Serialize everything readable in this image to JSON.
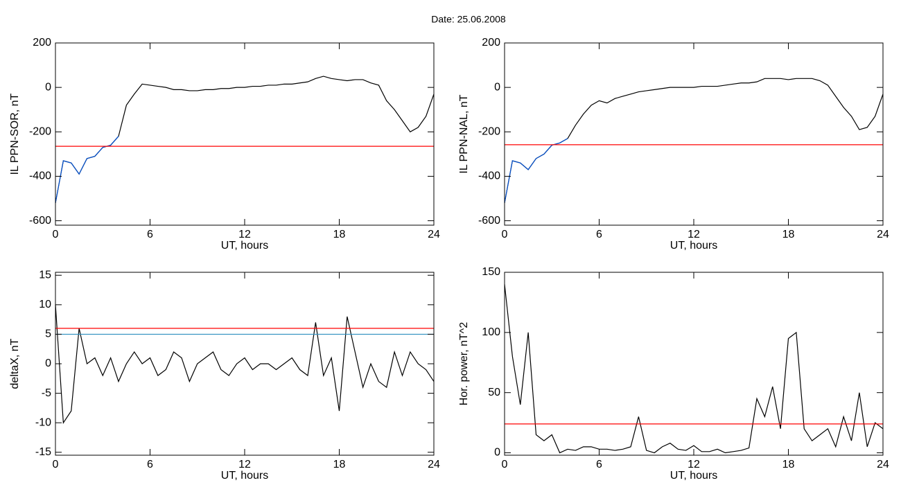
{
  "title": "Date:  25.06.2008",
  "chart_data": [
    {
      "type": "line",
      "xlabel": "UT, hours",
      "ylabel": "IL PPN-SOR, nT",
      "xlim": [
        0,
        24
      ],
      "xticks": [
        0,
        6,
        12,
        18,
        24
      ],
      "ylim": [
        -620,
        200
      ],
      "yticks": [
        -600,
        -400,
        -200,
        0,
        200
      ],
      "x": [
        0,
        0.5,
        1,
        1.5,
        2,
        2.5,
        3,
        3.5,
        4,
        4.5,
        5,
        5.5,
        6,
        6.5,
        7,
        7.5,
        8,
        8.5,
        9,
        9.5,
        10,
        10.5,
        11,
        11.5,
        12,
        12.5,
        13,
        13.5,
        14,
        14.5,
        15,
        15.5,
        16,
        16.5,
        17,
        17.5,
        18,
        18.5,
        19,
        19.5,
        20,
        20.5,
        21,
        21.5,
        22,
        22.5,
        23,
        23.5,
        24
      ],
      "series": [
        {
          "color": "#000000",
          "values": [
            -520,
            -330,
            -340,
            -390,
            -320,
            -310,
            -270,
            -260,
            -220,
            -80,
            -30,
            15,
            10,
            5,
            0,
            -10,
            -10,
            -15,
            -15,
            -10,
            -10,
            -5,
            -5,
            0,
            0,
            5,
            5,
            10,
            10,
            15,
            15,
            20,
            25,
            40,
            50,
            40,
            35,
            30,
            35,
            35,
            20,
            10,
            -60,
            -100,
            -150,
            -200,
            -180,
            -130,
            -30
          ]
        },
        {
          "color": "#0050d0",
          "values": [
            -520,
            -330,
            -340,
            -390,
            -320,
            -310,
            -270,
            -260,
            -220,
            null,
            null,
            null,
            null,
            null,
            null,
            null,
            null,
            null,
            null,
            null,
            null,
            null,
            null,
            null,
            null,
            null,
            null,
            null,
            null,
            null,
            null,
            null,
            null,
            null,
            null,
            null,
            null,
            null,
            null,
            null,
            null,
            null,
            null,
            null,
            null,
            null,
            null,
            null,
            null
          ]
        }
      ],
      "hlines": [
        {
          "color": "#ff0000",
          "value": -265
        }
      ]
    },
    {
      "type": "line",
      "xlabel": "UT, hours",
      "ylabel": "IL PPN-NAL, nT",
      "xlim": [
        0,
        24
      ],
      "xticks": [
        0,
        6,
        12,
        18,
        24
      ],
      "ylim": [
        -620,
        200
      ],
      "yticks": [
        -600,
        -400,
        -200,
        0,
        200
      ],
      "x": [
        0,
        0.5,
        1,
        1.5,
        2,
        2.5,
        3,
        3.5,
        4,
        4.5,
        5,
        5.5,
        6,
        6.5,
        7,
        7.5,
        8,
        8.5,
        9,
        9.5,
        10,
        10.5,
        11,
        11.5,
        12,
        12.5,
        13,
        13.5,
        14,
        14.5,
        15,
        15.5,
        16,
        16.5,
        17,
        17.5,
        18,
        18.5,
        19,
        19.5,
        20,
        20.5,
        21,
        21.5,
        22,
        22.5,
        23,
        23.5,
        24
      ],
      "series": [
        {
          "color": "#000000",
          "values": [
            -520,
            -330,
            -340,
            -370,
            -320,
            -300,
            -260,
            -250,
            -230,
            -170,
            -120,
            -80,
            -60,
            -70,
            -50,
            -40,
            -30,
            -20,
            -15,
            -10,
            -5,
            0,
            0,
            0,
            0,
            5,
            5,
            5,
            10,
            15,
            20,
            20,
            25,
            40,
            40,
            40,
            35,
            40,
            40,
            40,
            30,
            10,
            -40,
            -90,
            -130,
            -190,
            -180,
            -130,
            -30
          ]
        },
        {
          "color": "#0050d0",
          "values": [
            -520,
            -330,
            -340,
            -370,
            -320,
            -300,
            -260,
            -250,
            -230,
            null,
            null,
            null,
            null,
            null,
            null,
            null,
            null,
            null,
            null,
            null,
            null,
            null,
            null,
            null,
            null,
            null,
            null,
            null,
            null,
            null,
            null,
            null,
            null,
            null,
            null,
            null,
            null,
            null,
            null,
            null,
            null,
            null,
            null,
            null,
            null,
            null,
            null,
            null,
            null
          ]
        }
      ],
      "hlines": [
        {
          "color": "#ff0000",
          "value": -258
        }
      ]
    },
    {
      "type": "line",
      "xlabel": "UT, hours",
      "ylabel": "deltaX, nT",
      "xlim": [
        0,
        24
      ],
      "xticks": [
        0,
        6,
        12,
        18,
        24
      ],
      "ylim": [
        -15.5,
        15.5
      ],
      "yticks": [
        -15,
        -10,
        -5,
        0,
        5,
        10,
        15
      ],
      "x": [
        0,
        0.5,
        1,
        1.5,
        2,
        2.5,
        3,
        3.5,
        4,
        4.5,
        5,
        5.5,
        6,
        6.5,
        7,
        7.5,
        8,
        8.5,
        9,
        9.5,
        10,
        10.5,
        11,
        11.5,
        12,
        12.5,
        13,
        13.5,
        14,
        14.5,
        15,
        15.5,
        16,
        16.5,
        17,
        17.5,
        18,
        18.5,
        19,
        19.5,
        20,
        20.5,
        21,
        21.5,
        22,
        22.5,
        23,
        23.5,
        24
      ],
      "series": [
        {
          "color": "#000000",
          "values": [
            10,
            -10,
            -8,
            6,
            0,
            1,
            -2,
            1,
            -3,
            0,
            2,
            0,
            1,
            -2,
            -1,
            2,
            1,
            -3,
            0,
            1,
            2,
            -1,
            -2,
            0,
            1,
            -1,
            0,
            0,
            -1,
            0,
            1,
            -1,
            -2,
            7,
            -2,
            1,
            -8,
            8,
            2,
            -4,
            0,
            -3,
            -4,
            2,
            -2,
            2,
            0,
            -1,
            -3
          ]
        }
      ],
      "hlines": [
        {
          "color": "#ff0000",
          "value": 6
        },
        {
          "color": "#2d8fbf",
          "value": 5
        }
      ]
    },
    {
      "type": "line",
      "xlabel": "UT, hours",
      "ylabel": "Hor. power, nT^2",
      "xlim": [
        0,
        24
      ],
      "xticks": [
        0,
        6,
        12,
        18,
        24
      ],
      "ylim": [
        -2,
        150
      ],
      "yticks": [
        0,
        50,
        100,
        150
      ],
      "x": [
        0,
        0.5,
        1,
        1.5,
        2,
        2.5,
        3,
        3.5,
        4,
        4.5,
        5,
        5.5,
        6,
        6.5,
        7,
        7.5,
        8,
        8.5,
        9,
        9.5,
        10,
        10.5,
        11,
        11.5,
        12,
        12.5,
        13,
        13.5,
        14,
        14.5,
        15,
        15.5,
        16,
        16.5,
        17,
        17.5,
        18,
        18.5,
        19,
        19.5,
        20,
        20.5,
        21,
        21.5,
        22,
        22.5,
        23,
        23.5,
        24
      ],
      "series": [
        {
          "color": "#000000",
          "values": [
            140,
            80,
            40,
            100,
            15,
            10,
            15,
            0,
            3,
            2,
            5,
            5,
            3,
            3,
            2,
            3,
            5,
            30,
            2,
            0,
            5,
            8,
            3,
            2,
            6,
            1,
            1,
            3,
            0,
            1,
            2,
            4,
            45,
            30,
            55,
            20,
            95,
            100,
            20,
            10,
            15,
            20,
            5,
            30,
            10,
            50,
            5,
            25,
            20
          ]
        }
      ],
      "hlines": [
        {
          "color": "#ff0000",
          "value": 24
        }
      ]
    }
  ]
}
